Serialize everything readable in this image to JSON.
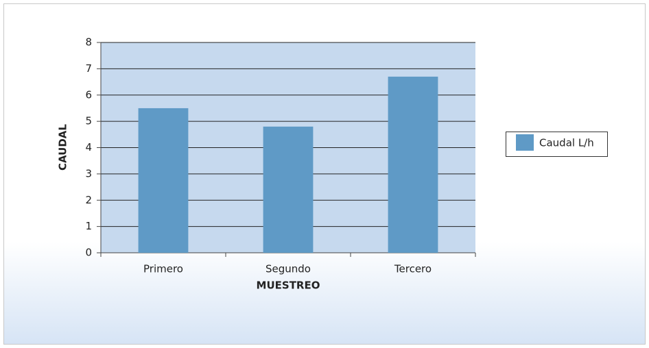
{
  "chart_data": {
    "type": "bar",
    "categories": [
      "Primero",
      "Segundo",
      "Tercero"
    ],
    "values": [
      5.5,
      4.8,
      6.7
    ],
    "color": "#5f9ac6",
    "series_name": "Caudal L/h",
    "x_label": "MUESTREO",
    "y_label": "CAUDAL",
    "ylim": [
      0,
      8
    ],
    "yticks": [
      0,
      1,
      2,
      3,
      4,
      5,
      6,
      7,
      8
    ],
    "grid": true,
    "legend": "right"
  }
}
